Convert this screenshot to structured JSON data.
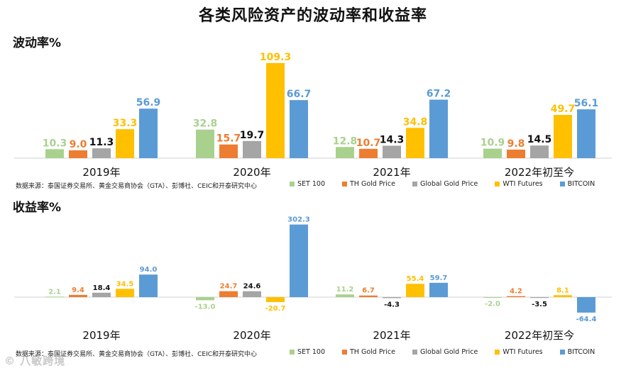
{
  "title": "各类风险资产的波动率和收益率",
  "watermark": "© 八敏跨境",
  "source": "数据来源：泰国证券交易所、黄金交易商协会（GTA）、彭博社、CEIC和开泰研究中心",
  "colors": {
    "SET 100": "#a9d18e",
    "TH Gold Price": "#ed7d31",
    "Global Gold Price": "#a5a5a5",
    "WTI Futures": "#ffc000",
    "BITCOIN": "#5b9bd5"
  },
  "chart_data": [
    {
      "type": "bar",
      "title": "波动率%",
      "categories": [
        "2019年",
        "2020年",
        "2021年",
        "2022年初至今"
      ],
      "series": [
        {
          "name": "SET 100",
          "values": [
            10.3,
            32.8,
            12.8,
            10.9
          ]
        },
        {
          "name": "TH Gold Price",
          "values": [
            9.0,
            15.7,
            10.7,
            9.8
          ]
        },
        {
          "name": "Global Gold Price",
          "values": [
            11.3,
            19.7,
            14.3,
            14.5
          ]
        },
        {
          "name": "WTI Futures",
          "values": [
            33.3,
            109.3,
            34.8,
            49.7
          ]
        },
        {
          "name": "BITCOIN",
          "values": [
            56.9,
            66.7,
            67.2,
            56.1
          ]
        }
      ],
      "labels": [
        [
          "10.3",
          "32.8",
          "12.8",
          "10.9"
        ],
        [
          "9.0",
          "15.7",
          "10.7",
          "9.8"
        ],
        [
          "11.3",
          "19.7",
          "14.3",
          "14.5"
        ],
        [
          "33.3",
          "109.3",
          "34.8",
          "49.7"
        ],
        [
          "56.9",
          "66.7",
          "67.2",
          "56.1"
        ]
      ],
      "ylim": [
        0,
        110
      ]
    },
    {
      "type": "bar",
      "title": "收益率%",
      "categories": [
        "2019年",
        "2020年",
        "2021年",
        "2022年初至今"
      ],
      "series": [
        {
          "name": "SET 100",
          "values": [
            2.1,
            -13.0,
            11.2,
            -2.0
          ]
        },
        {
          "name": "TH Gold Price",
          "values": [
            9.4,
            24.7,
            6.7,
            4.2
          ]
        },
        {
          "name": "Global Gold Price",
          "values": [
            18.4,
            24.6,
            -4.3,
            -3.5
          ]
        },
        {
          "name": "WTI Futures",
          "values": [
            34.5,
            -20.7,
            55.4,
            8.1
          ]
        },
        {
          "name": "BITCOIN",
          "values": [
            94.0,
            302.3,
            59.7,
            -64.4
          ]
        }
      ],
      "labels": [
        [
          "2.1",
          "-13.0",
          "11.2",
          "-2.0"
        ],
        [
          "9.4",
          "24.7",
          "6.7",
          "4.2"
        ],
        [
          "18.4",
          "24.6",
          "-4.3",
          "-3.5"
        ],
        [
          "34.5",
          "-20.7",
          "55.4",
          "8.1"
        ],
        [
          "94.0",
          "302.3",
          "59.7",
          "-64.4"
        ]
      ],
      "ylim": [
        -70,
        310
      ]
    }
  ]
}
